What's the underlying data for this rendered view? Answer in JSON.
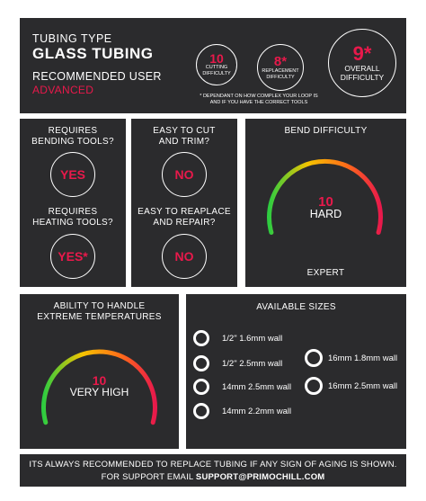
{
  "header": {
    "eyebrow": "TUBING TYPE",
    "title": "GLASS TUBING",
    "user_label": "RECOMMENDED USER",
    "user_value": "ADVANCED",
    "difficulties": [
      {
        "value": "10",
        "line1": "CUTTING",
        "line2": "DIFFICULTY"
      },
      {
        "value": "8*",
        "line1": "REPLACEMENT",
        "line2": "DIFFICULTY"
      },
      {
        "value": "9*",
        "line1": "OVERALL",
        "line2": "DIFFICULTY"
      }
    ],
    "footnote_line1": "* DEPENDANT ON HOW COMPLEX YOUR LOOP IS",
    "footnote_line2": "AND IF YOU HAVE THE CORRECT TOOLS"
  },
  "tools": {
    "bending_q1": "REQUIRES",
    "bending_q2": "BENDING TOOLS?",
    "bending_a": "YES",
    "heating_q1": "REQUIRES",
    "heating_q2": "HEATING TOOLS?",
    "heating_a": "YES*"
  },
  "ease": {
    "cut_q1": "EASY TO CUT",
    "cut_q2": "AND TRIM?",
    "cut_a": "NO",
    "replace_q1": "EASY TO REAPLACE",
    "replace_q2": "AND REPAIR?",
    "replace_a": "NO"
  },
  "bend": {
    "title": "BEND DIFFICULTY",
    "value": "10",
    "word": "HARD",
    "level": "EXPERT",
    "fraction": 1.0
  },
  "temp": {
    "title1": "ABILITY TO HANDLE",
    "title2": "EXTREME TEMPERATURES",
    "value": "10",
    "word": "VERY HIGH",
    "fraction": 1.0
  },
  "sizes": {
    "title": "AVAILABLE SIZES",
    "left": [
      "1/2\" 1.6mm wall",
      "1/2\" 2.5mm wall",
      "14mm 2.5mm wall",
      "14mm 2.2mm wall"
    ],
    "right": [
      "16mm 1.8mm wall",
      "16mm 2.5mm wall"
    ]
  },
  "footer": {
    "line1": "ITS ALWAYS RECOMMENDED TO REPLACE TUBING IF ANY SIGN OF AGING IS SHOWN.",
    "line2_prefix": "FOR SUPPORT EMAIL",
    "email": "SUPPORT@PRIMOCHILL.COM"
  },
  "colors": {
    "panel": "#2b2b2d",
    "accent": "#e8194b",
    "gauge_start": "#2ecc40",
    "gauge_mid": "#f5c400"
  }
}
